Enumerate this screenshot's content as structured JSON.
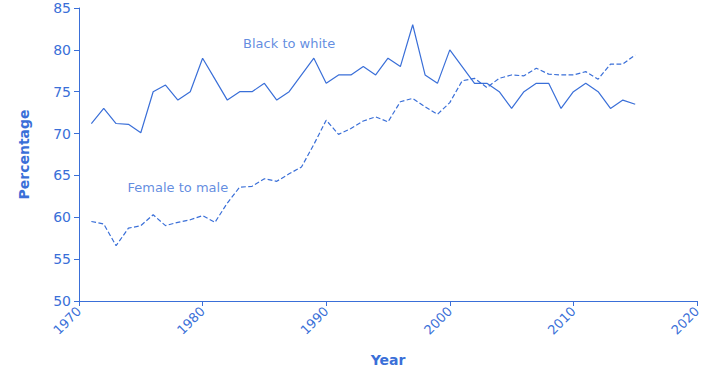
{
  "chart_data": {
    "type": "line",
    "x_label": "Year",
    "y_label": "Percentage",
    "x": [
      1971,
      1972,
      1973,
      1974,
      1975,
      1976,
      1977,
      1978,
      1979,
      1980,
      1981,
      1982,
      1983,
      1984,
      1985,
      1986,
      1987,
      1988,
      1989,
      1990,
      1991,
      1992,
      1993,
      1994,
      1995,
      1996,
      1997,
      1998,
      1999,
      2000,
      2001,
      2002,
      2003,
      2004,
      2005,
      2006,
      2007,
      2008,
      2009,
      2010,
      2011,
      2012,
      2013,
      2014,
      2015
    ],
    "series": [
      {
        "name": "Black to white",
        "color": "#3a6fd8",
        "line_style": "solid",
        "values": [
          71.2,
          73,
          71.2,
          71.1,
          70.1,
          75,
          75.8,
          74,
          75,
          79,
          76.5,
          74,
          75,
          75,
          76,
          74,
          75,
          77,
          79,
          76,
          77,
          77,
          78,
          77,
          79,
          78,
          83,
          77,
          76,
          80,
          78,
          76,
          76,
          75,
          73,
          75,
          76,
          76,
          73,
          75,
          76,
          75,
          73,
          74,
          73.5
        ]
      },
      {
        "name": "Female to male",
        "color": "#3a6fd8",
        "line_style": "dashed",
        "values": [
          59.5,
          59.2,
          56.6,
          58.7,
          59,
          60.3,
          59,
          59.4,
          59.7,
          60.2,
          59.4,
          61.7,
          63.6,
          63.7,
          64.6,
          64.3,
          65.2,
          66,
          68.7,
          71.6,
          69.9,
          70.6,
          71.5,
          72,
          71.4,
          73.8,
          74.2,
          73.2,
          72.3,
          73.7,
          76.3,
          76.6,
          75.5,
          76.6,
          77,
          76.9,
          77.8,
          77.1,
          77,
          77,
          77.4,
          76.5,
          78.3,
          78.3,
          79.4
        ]
      }
    ],
    "annotations": [
      {
        "text": "Black to white",
        "x": 1987,
        "y": 80.7
      },
      {
        "text": "Female to male",
        "x": 1978,
        "y": 63.5
      }
    ],
    "xlim": [
      1970,
      2020
    ],
    "xticks": [
      1970,
      1980,
      1990,
      2000,
      2010,
      2020
    ],
    "ylim": [
      50,
      85
    ],
    "yticks": [
      50,
      55,
      60,
      65,
      70,
      75,
      80,
      85
    ],
    "grid": false
  }
}
